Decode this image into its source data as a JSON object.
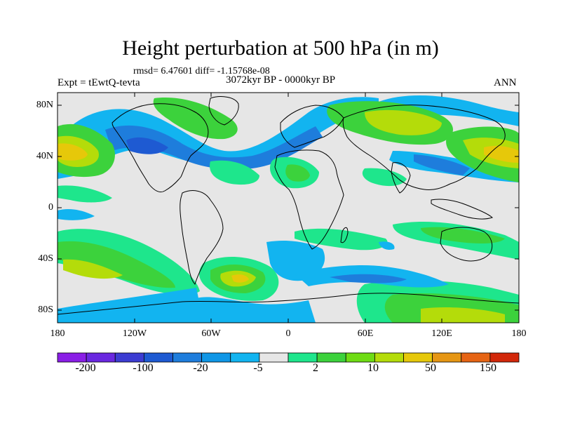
{
  "header": {
    "title": "Height perturbation at 500 hPa (in m)",
    "stats": "rmsd= 6.47601 diff= -1.15768e-08",
    "experiment": "Expt = tEwtQ-tevta",
    "period": "3072kyr BP - 0000kyr BP",
    "season": "ANN"
  },
  "map": {
    "lat_range": [
      -90,
      90
    ],
    "lon_range": [
      -180,
      180
    ],
    "lat_ticks": [
      "80N",
      "40N",
      "0",
      "40S",
      "80S"
    ],
    "lon_ticks": [
      "180",
      "120W",
      "60W",
      "0",
      "60E",
      "120E",
      "180"
    ],
    "background_color": "#e6e6e6"
  },
  "colorbar": {
    "labels": [
      "-200",
      "-100",
      "-20",
      "-5",
      "2",
      "10",
      "50",
      "150"
    ],
    "colors": [
      "#8a1ee6",
      "#6a28e0",
      "#3c3cd2",
      "#1e5ad2",
      "#1e7ddc",
      "#0f96e6",
      "#12b4f0",
      "#e6e6e6",
      "#1ee68c",
      "#3cd23c",
      "#6edc14",
      "#b4dc0a",
      "#e6c80a",
      "#e69614",
      "#e66414",
      "#d2280a"
    ]
  }
}
